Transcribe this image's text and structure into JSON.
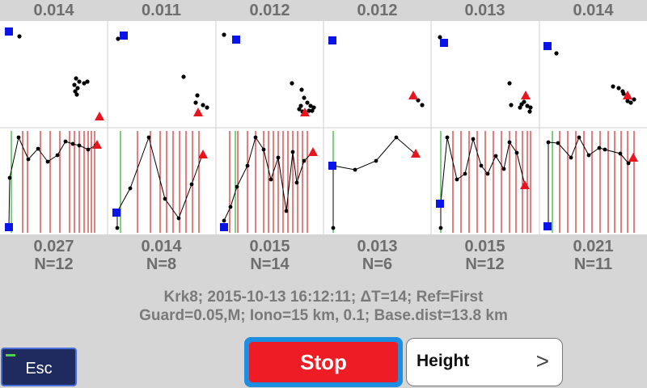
{
  "panels": [
    {
      "top_value": "0.014",
      "bottom_value": "0.027",
      "n_label": "N=12",
      "scatter": {
        "square": [
          11,
          39
        ],
        "triangle": [
          123,
          144
        ],
        "points": [
          [
            24,
            45
          ],
          [
            94,
            97
          ],
          [
            98,
            101
          ],
          [
            104,
            103
          ],
          [
            108,
            101
          ],
          [
            92,
            105
          ],
          [
            96,
            109
          ],
          [
            93,
            113
          ],
          [
            95,
            117
          ]
        ]
      },
      "series": {
        "verticals_red": [
          28,
          34,
          50,
          62,
          74,
          86,
          92,
          98,
          104,
          109,
          113,
          117
        ],
        "verticals_green": [
          14
        ],
        "points": [
          [
            11,
            281
          ],
          [
            12,
            220
          ],
          [
            23,
            170
          ],
          [
            35,
            197
          ],
          [
            47,
            184
          ],
          [
            59,
            200
          ],
          [
            71,
            192
          ],
          [
            81,
            175
          ],
          [
            90,
            178
          ],
          [
            98,
            180
          ],
          [
            109,
            185
          ],
          [
            118,
            180
          ]
        ],
        "square": [
          11,
          281
        ],
        "triangle": [
          120,
          179
        ]
      }
    },
    {
      "top_value": "0.011",
      "bottom_value": "0.014",
      "n_label": "N=8",
      "scatter": {
        "square": [
          153,
          44
        ],
        "triangle": [
          245,
          139
        ],
        "points": [
          [
            146,
            48
          ],
          [
            227,
            95
          ],
          [
            244,
            118
          ],
          [
            251,
            130
          ],
          [
            256,
            133
          ],
          [
            242,
            127
          ]
        ]
      },
      "series": {
        "verticals_red": [
          170,
          186,
          198,
          206,
          214,
          222,
          230,
          238,
          246
        ],
        "verticals_green": [
          149
        ],
        "points": [
          [
            145,
            282
          ],
          [
            145,
            262
          ],
          [
            161,
            233
          ],
          [
            184,
            170
          ],
          [
            204,
            246
          ],
          [
            221,
            270
          ],
          [
            237,
            228
          ],
          [
            250,
            192
          ]
        ],
        "square": [
          144,
          263
        ],
        "triangle": [
          251,
          191
        ]
      }
    },
    {
      "top_value": "0.012",
      "bottom_value": "0.015",
      "n_label": "N=14",
      "scatter": {
        "square": [
          292,
          49
        ],
        "triangle": [
          377,
          139
        ],
        "points": [
          [
            277,
            43
          ],
          [
            361,
            103
          ],
          [
            373,
            111
          ],
          [
            376,
            121
          ],
          [
            372,
            131
          ],
          [
            380,
            127
          ],
          [
            384,
            131
          ],
          [
            386,
            137
          ],
          [
            374,
            138
          ],
          [
            382,
            137
          ],
          [
            370,
            135
          ],
          [
            388,
            133
          ]
        ]
      },
      "series": {
        "verticals_red": [
          284,
          294,
          306,
          316,
          326,
          332,
          338,
          344,
          350,
          356,
          362,
          368,
          374,
          380
        ],
        "verticals_green": [
          291
        ],
        "points": [
          [
            277,
            273
          ],
          [
            285,
            256
          ],
          [
            293,
            231
          ],
          [
            306,
            205
          ],
          [
            316,
            170
          ],
          [
            326,
            185
          ],
          [
            335,
            222
          ],
          [
            344,
            195
          ],
          [
            354,
            261
          ],
          [
            362,
            188
          ],
          [
            367,
            226
          ],
          [
            376,
            199
          ],
          [
            386,
            189
          ]
        ],
        "square": [
          277,
          281
        ],
        "triangle": [
          387,
          188
        ]
      }
    },
    {
      "top_value": "0.012",
      "bottom_value": "0.013",
      "n_label": "N=6",
      "scatter": {
        "square": [
          411,
          50
        ],
        "triangle": [
          511,
          118
        ],
        "points": [
          [
            517,
            124
          ],
          [
            522,
            130
          ]
        ]
      },
      "series": {
        "verticals_red": [],
        "verticals_green": [
          412
        ],
        "points": [
          [
            412,
            282
          ],
          [
            412,
            205
          ],
          [
            439,
            210
          ],
          [
            465,
            199
          ],
          [
            490,
            170
          ],
          [
            513,
            190
          ]
        ],
        "square": [
          411,
          205
        ],
        "triangle": [
          514,
          190
        ]
      }
    },
    {
      "top_value": "0.013",
      "bottom_value": "0.015",
      "n_label": "N=12",
      "scatter": {
        "square": [
          549,
          53
        ],
        "triangle": [
          650,
          118
        ],
        "points": [
          [
            544,
            46
          ],
          [
            630,
            103
          ],
          [
            632,
            130
          ],
          [
            645,
            129
          ],
          [
            648,
            126
          ],
          [
            652,
            131
          ],
          [
            656,
            133
          ],
          [
            655,
            138
          ],
          [
            643,
            133
          ]
        ]
      },
      "series": {
        "verticals_red": [
          560,
          570,
          580,
          590,
          600,
          610,
          620,
          630,
          638,
          646,
          652,
          656
        ],
        "verticals_green": [
          545
        ],
        "points": [
          [
            545,
            282
          ],
          [
            545,
            251
          ],
          [
            553,
            170
          ],
          [
            565,
            222
          ],
          [
            575,
            215
          ],
          [
            585,
            172
          ],
          [
            595,
            205
          ],
          [
            603,
            215
          ],
          [
            613,
            193
          ],
          [
            623,
            209
          ],
          [
            630,
            176
          ],
          [
            639,
            189
          ],
          [
            649,
            229
          ]
        ],
        "square": [
          544,
          252
        ],
        "triangle": [
          649,
          229
        ]
      }
    },
    {
      "top_value": "0.014",
      "bottom_value": "0.021",
      "n_label": "N=11",
      "scatter": {
        "square": [
          677,
          57
        ],
        "triangle": [
          776,
          118
        ],
        "points": [
          [
            688,
            66
          ],
          [
            758,
            107
          ],
          [
            765,
            109
          ],
          [
            770,
            113
          ],
          [
            776,
            125
          ],
          [
            780,
            127
          ],
          [
            784,
            123
          ],
          [
            771,
            116
          ]
        ]
      },
      "series": {
        "verticals_red": [
          692,
          702,
          712,
          722,
          732,
          742,
          752,
          760,
          768,
          776,
          784
        ],
        "verticals_green": [
          683
        ],
        "points": [
          [
            678,
            281
          ],
          [
            678,
            176
          ],
          [
            690,
            177
          ],
          [
            706,
            195
          ],
          [
            716,
            170
          ],
          [
            728,
            192
          ],
          [
            741,
            183
          ],
          [
            748,
            185
          ],
          [
            767,
            190
          ],
          [
            777,
            202
          ],
          [
            784,
            196
          ]
        ],
        "square": [
          677,
          280
        ],
        "triangle": [
          783,
          195
        ]
      }
    }
  ],
  "info": {
    "line1": "Krk8; 2015-10-13 16:12:11; ΔT=14; Ref=First",
    "line2": "Guard=0.05,M; Iono=15 km, 0.1; Base.dist=13.8 km"
  },
  "buttons": {
    "esc": "Esc",
    "stop": "Stop",
    "height": "Height",
    "height_chevron": ">"
  },
  "colors": {
    "square": "#0a14e6",
    "triangle": "#e8141e",
    "red_line": "#c80000",
    "green_line": "#00a000",
    "dot": "#000000"
  }
}
